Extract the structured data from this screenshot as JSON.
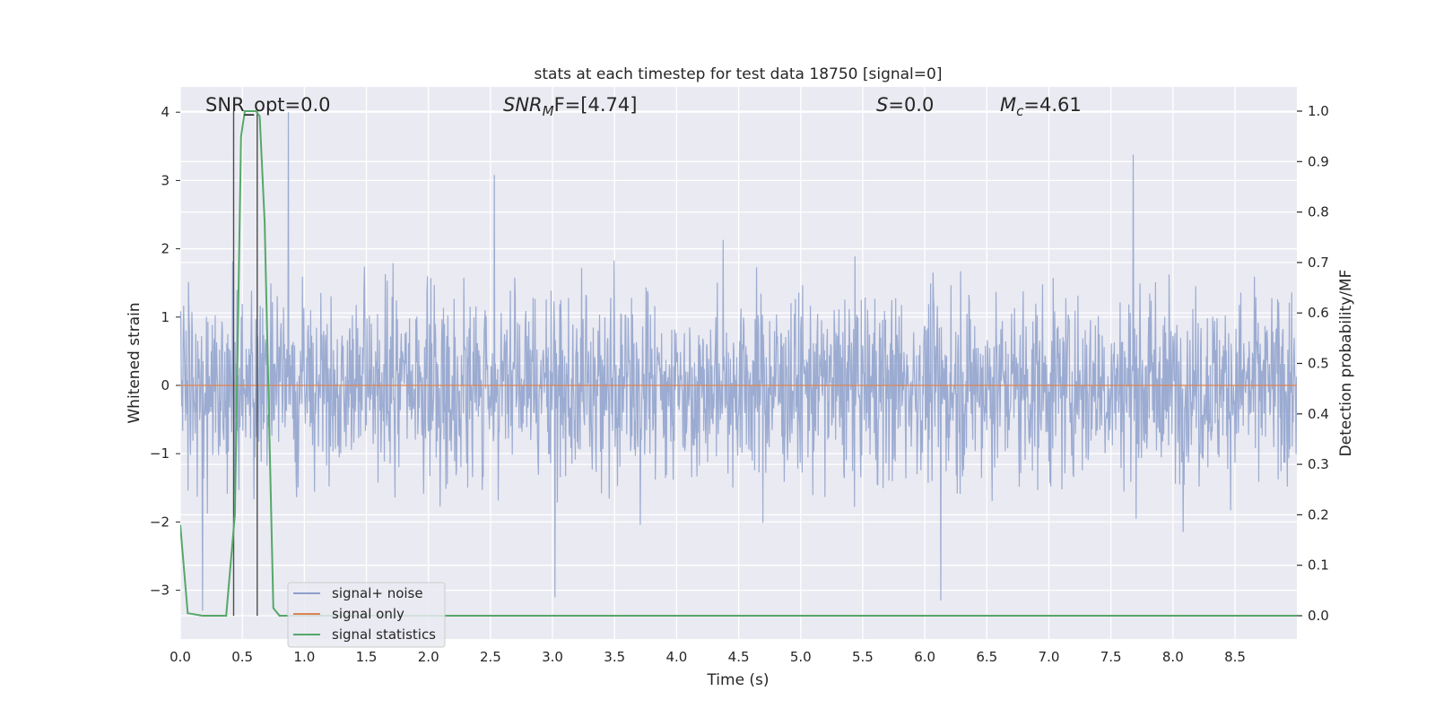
{
  "chart_data": {
    "type": "line",
    "title": "stats at each timestep for test data 18750 [signal=0]",
    "xlabel": "Time (s)",
    "ylabel_left": "Whitened strain",
    "ylabel_right": "Detection probability/MF",
    "xlim": [
      0.0,
      9.0
    ],
    "ylim_left": [
      -3.75,
      4.35
    ],
    "ylim_right": [
      -0.05,
      1.04
    ],
    "x_ticks": [
      0.0,
      0.5,
      1.0,
      1.5,
      2.0,
      2.5,
      3.0,
      3.5,
      4.0,
      4.5,
      5.0,
      5.5,
      6.0,
      6.5,
      7.0,
      7.5,
      8.0,
      8.5
    ],
    "x_tick_labels": [
      "0.0",
      "0.5",
      "1.0",
      "1.5",
      "2.0",
      "2.5",
      "3.0",
      "3.5",
      "4.0",
      "4.5",
      "5.0",
      "5.5",
      "6.0",
      "6.5",
      "7.0",
      "7.5",
      "8.0",
      "8.5"
    ],
    "y_left_ticks": [
      -3,
      -2,
      -1,
      0,
      1,
      2,
      3,
      4
    ],
    "y_left_tick_labels": [
      "−3",
      "−2",
      "−1",
      "0",
      "1",
      "2",
      "3",
      "4"
    ],
    "y_right_ticks": [
      0.0,
      0.1,
      0.2,
      0.3,
      0.4,
      0.5,
      0.6,
      0.7,
      0.8,
      0.9,
      1.0
    ],
    "y_right_tick_labels": [
      "0.0",
      "0.1",
      "0.2",
      "0.3",
      "0.4",
      "0.5",
      "0.6",
      "0.7",
      "0.8",
      "0.9",
      "1.0"
    ],
    "grid": true,
    "legend_position": "lower-left",
    "annotations": {
      "snr_opt": "SNR_opt=0.0",
      "snr_mf_prefix": "SNR",
      "snr_mf_sub": "M",
      "snr_mf_suffix": "F=[4.74]",
      "s_prefix": "S",
      "s_suffix": "=0.0",
      "mc_prefix": "M",
      "mc_sub": "c",
      "mc_suffix": "=4.61"
    },
    "series": [
      {
        "name": "signal+ noise",
        "color": "#8da0cb",
        "kind": "noise",
        "sample_rate_hz": 256,
        "envelope": [
          -3.3,
          4.0
        ],
        "notable_peaks": [
          {
            "x": 0.87,
            "y": 4.0
          },
          {
            "x": 7.68,
            "y": 3.38
          },
          {
            "x": 2.53,
            "y": 3.08
          },
          {
            "x": 0.18,
            "y": -3.3
          },
          {
            "x": 3.02,
            "y": -3.1
          },
          {
            "x": 6.13,
            "y": -3.15
          }
        ]
      },
      {
        "name": "signal only",
        "color": "#dd8452",
        "kind": "flat",
        "value": 0.0
      },
      {
        "name": "signal statistics",
        "color": "#55a868",
        "axis": "right",
        "x": [
          0.0,
          0.06,
          0.18,
          0.37,
          0.44,
          0.49,
          0.52,
          0.61,
          0.64,
          0.68,
          0.75,
          0.8,
          0.9,
          9.0
        ],
        "y": [
          0.18,
          0.005,
          0.0,
          0.0,
          0.2,
          0.95,
          1.0,
          1.0,
          0.99,
          0.78,
          0.015,
          0.0,
          0.0,
          0.0
        ]
      }
    ],
    "vertical_markers": {
      "color": "#4d4d4d",
      "x": [
        0.43,
        0.62
      ],
      "y_range": [
        0.0,
        1.0
      ]
    }
  }
}
